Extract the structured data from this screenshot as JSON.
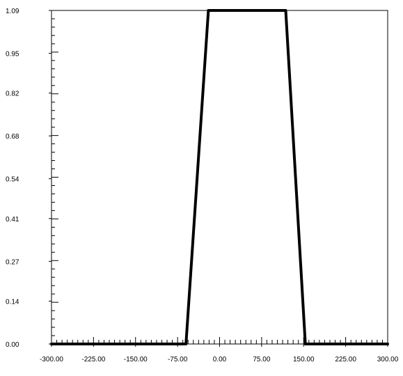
{
  "chart_data": {
    "type": "line",
    "title": "",
    "xlabel": "",
    "ylabel": "",
    "xlim": [
      -300,
      300
    ],
    "ylim": [
      0,
      1.09
    ],
    "grid": false,
    "x_ticks": [
      {
        "value": -300,
        "label": "-300.00"
      },
      {
        "value": -225,
        "label": "-225.00"
      },
      {
        "value": -150,
        "label": "-150.00"
      },
      {
        "value": -75,
        "label": "-75.00"
      },
      {
        "value": 0,
        "label": "0.00"
      },
      {
        "value": 75,
        "label": "75.00"
      },
      {
        "value": 150,
        "label": "150.00"
      },
      {
        "value": 225,
        "label": "225.00"
      },
      {
        "value": 300,
        "label": "300.00"
      }
    ],
    "y_ticks": [
      {
        "value": 0.0,
        "label": "0.00"
      },
      {
        "value": 0.14,
        "label": "0.14"
      },
      {
        "value": 0.27,
        "label": "0.27"
      },
      {
        "value": 0.41,
        "label": "0.41"
      },
      {
        "value": 0.54,
        "label": "0.54"
      },
      {
        "value": 0.68,
        "label": "0.68"
      },
      {
        "value": 0.82,
        "label": "0.82"
      },
      {
        "value": 0.95,
        "label": "0.95"
      },
      {
        "value": 1.09,
        "label": "1.09"
      }
    ],
    "series": [
      {
        "color": "#000000",
        "x": [
          -300,
          -60,
          -20,
          118,
          153,
          300
        ],
        "y": [
          0.0,
          0.0,
          1.09,
          1.09,
          0.0,
          0.0
        ]
      }
    ]
  }
}
